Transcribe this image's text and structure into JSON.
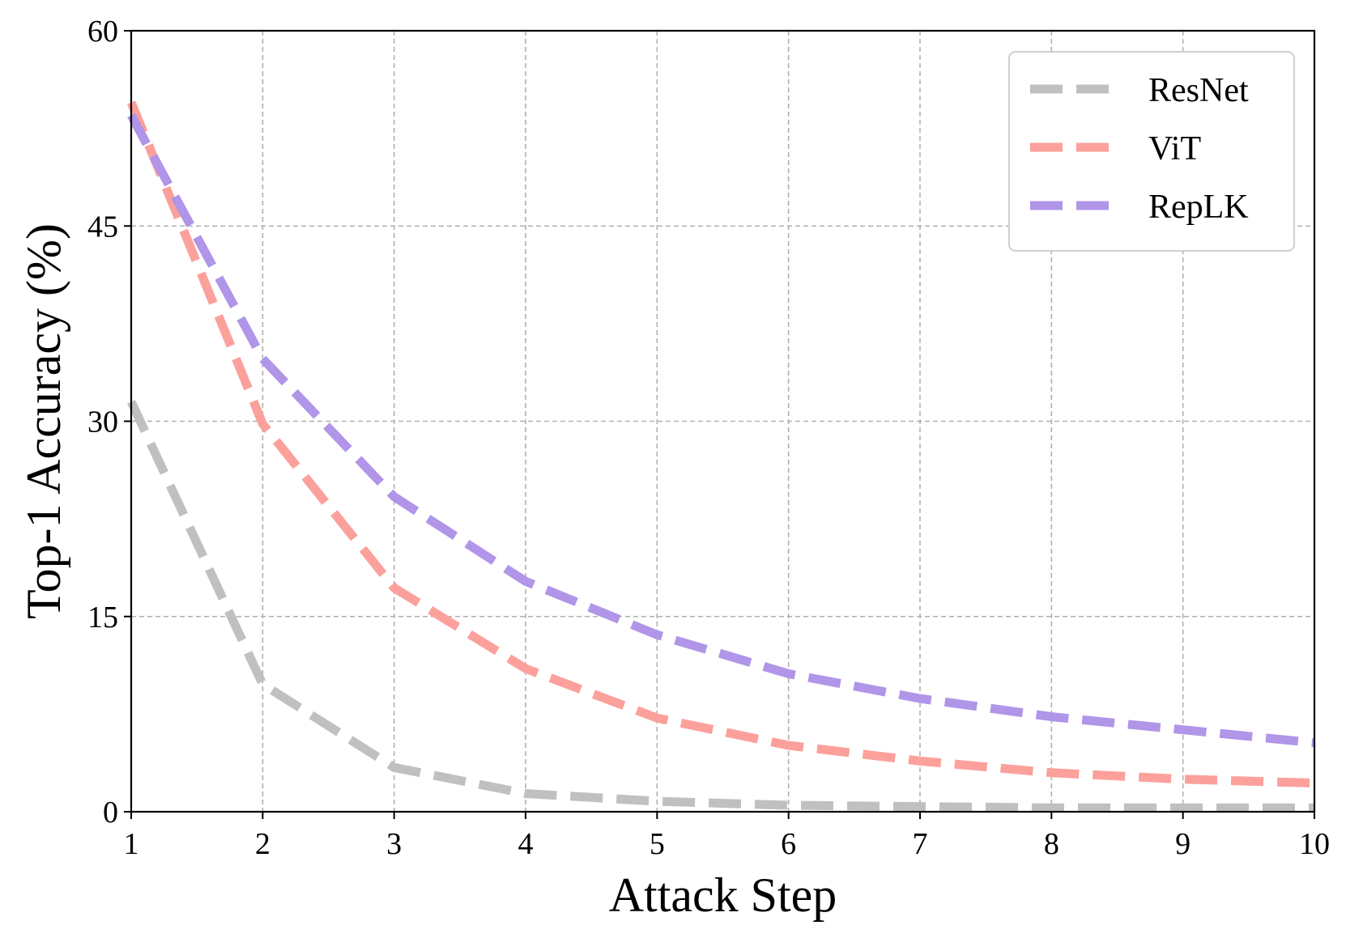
{
  "chart_data": {
    "type": "line",
    "xlabel": "Attack Step",
    "ylabel": "Top-1 Accuracy (%)",
    "xlim": [
      1,
      10
    ],
    "ylim": [
      0,
      60
    ],
    "xticks": [
      1,
      2,
      3,
      4,
      5,
      6,
      7,
      8,
      9,
      10
    ],
    "yticks": [
      0,
      15,
      30,
      45,
      60
    ],
    "grid": true,
    "legend_position": "top-right",
    "x": [
      1,
      2,
      3,
      4,
      5,
      6,
      7,
      8,
      9,
      10
    ],
    "series": [
      {
        "name": "ResNet",
        "color": "#c0c0c0",
        "line_style": "dashed",
        "values": [
          31.5,
          9.8,
          3.4,
          1.4,
          0.8,
          0.5,
          0.4,
          0.3,
          0.3,
          0.3
        ]
      },
      {
        "name": "ViT",
        "color": "#fca09b",
        "line_style": "dashed",
        "values": [
          54.5,
          29.8,
          17.2,
          11.0,
          7.2,
          5.1,
          3.9,
          3.0,
          2.5,
          2.2
        ]
      },
      {
        "name": "RepLK",
        "color": "#b095e8",
        "line_style": "dashed",
        "values": [
          53.5,
          34.8,
          24.2,
          17.7,
          13.6,
          10.6,
          8.7,
          7.3,
          6.3,
          5.3
        ]
      }
    ]
  }
}
